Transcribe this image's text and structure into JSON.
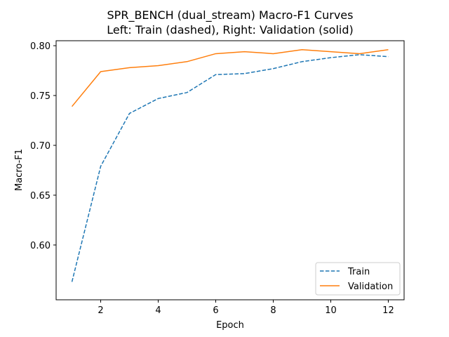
{
  "chart_data": {
    "type": "line",
    "title": "SPR_BENCH (dual_stream) Macro-F1 Curves",
    "subtitle": "Left: Train (dashed), Right: Validation (solid)",
    "xlabel": "Epoch",
    "ylabel": "Macro-F1",
    "x": [
      1,
      2,
      3,
      4,
      5,
      6,
      7,
      8,
      9,
      10,
      11,
      12
    ],
    "xlim": [
      0.45,
      12.55
    ],
    "ylim": [
      0.545,
      0.805
    ],
    "xticks": [
      2,
      4,
      6,
      8,
      10,
      12
    ],
    "yticks": [
      0.6,
      0.65,
      0.7,
      0.75,
      0.8
    ],
    "xtick_labels": [
      "2",
      "4",
      "6",
      "8",
      "10",
      "12"
    ],
    "ytick_labels": [
      "0.60",
      "0.65",
      "0.70",
      "0.75",
      "0.80"
    ],
    "grid": false,
    "legend_position": "lower-right",
    "series": [
      {
        "name": "Train",
        "style": "dashed",
        "color": "#1f77b4",
        "values": [
          0.563,
          0.679,
          0.732,
          0.747,
          0.753,
          0.771,
          0.772,
          0.777,
          0.784,
          0.788,
          0.791,
          0.789
        ]
      },
      {
        "name": "Validation",
        "style": "solid",
        "color": "#ff7f0e",
        "values": [
          0.739,
          0.774,
          0.778,
          0.78,
          0.784,
          0.792,
          0.794,
          0.792,
          0.796,
          0.794,
          0.792,
          0.796
        ]
      }
    ]
  }
}
